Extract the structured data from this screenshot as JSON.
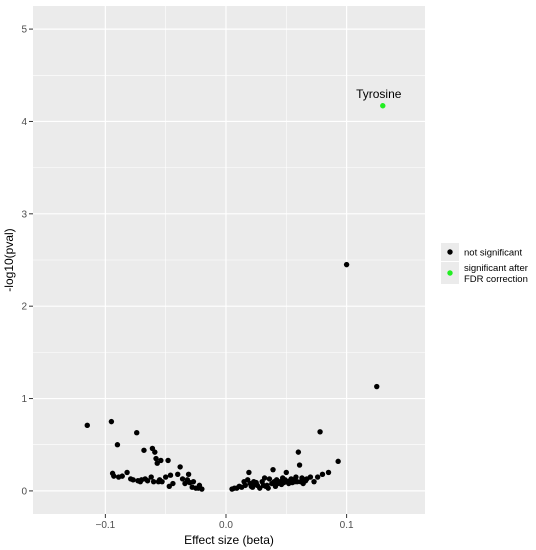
{
  "chart_data": {
    "type": "scatter",
    "title": "",
    "xlabel": "Effect size (beta)",
    "ylabel": "-log10(pval)",
    "xlim": [
      -0.16,
      0.165
    ],
    "ylim": [
      -0.25,
      5.25
    ],
    "x_ticks": [
      -0.1,
      0.0,
      0.1
    ],
    "x_tick_labels": [
      "−0.1",
      "0.0",
      "0.1"
    ],
    "y_ticks": [
      0,
      1,
      2,
      3,
      4,
      5
    ],
    "y_tick_labels": [
      "0",
      "1",
      "2",
      "3",
      "4",
      "5"
    ],
    "grid": true,
    "panel_background": "#ebebeb",
    "legend_position": "right",
    "series": [
      {
        "name": "not significant",
        "color": "#000000",
        "points": [
          [
            -0.115,
            0.71
          ],
          [
            -0.095,
            0.75
          ],
          [
            -0.094,
            0.19
          ],
          [
            -0.093,
            0.16
          ],
          [
            -0.09,
            0.5
          ],
          [
            -0.089,
            0.15
          ],
          [
            -0.086,
            0.16
          ],
          [
            -0.082,
            0.2
          ],
          [
            -0.079,
            0.13
          ],
          [
            -0.077,
            0.12
          ],
          [
            -0.074,
            0.63
          ],
          [
            -0.073,
            0.11
          ],
          [
            -0.071,
            0.1
          ],
          [
            -0.07,
            0.12
          ],
          [
            -0.068,
            0.44
          ],
          [
            -0.067,
            0.13
          ],
          [
            -0.065,
            0.11
          ],
          [
            -0.062,
            0.15
          ],
          [
            -0.061,
            0.46
          ],
          [
            -0.06,
            0.1
          ],
          [
            -0.059,
            0.42
          ],
          [
            -0.058,
            0.35
          ],
          [
            -0.057,
            0.3
          ],
          [
            -0.056,
            0.1
          ],
          [
            -0.055,
            0.12
          ],
          [
            -0.054,
            0.33
          ],
          [
            -0.053,
            0.1
          ],
          [
            -0.05,
            0.15
          ],
          [
            -0.048,
            0.33
          ],
          [
            -0.047,
            0.05
          ],
          [
            -0.046,
            0.17
          ],
          [
            -0.044,
            0.08
          ],
          [
            -0.04,
            0.18
          ],
          [
            -0.038,
            0.26
          ],
          [
            -0.036,
            0.13
          ],
          [
            -0.034,
            0.08
          ],
          [
            -0.032,
            0.12
          ],
          [
            -0.031,
            0.18
          ],
          [
            -0.03,
            0.09
          ],
          [
            -0.028,
            0.04
          ],
          [
            -0.027,
            0.1
          ],
          [
            -0.025,
            0.03
          ],
          [
            -0.023,
            0.03
          ],
          [
            -0.022,
            0.06
          ],
          [
            -0.02,
            0.02
          ],
          [
            0.005,
            0.02
          ],
          [
            0.007,
            0.03
          ],
          [
            0.009,
            0.03
          ],
          [
            0.011,
            0.05
          ],
          [
            0.013,
            0.04
          ],
          [
            0.015,
            0.1
          ],
          [
            0.016,
            0.06
          ],
          [
            0.018,
            0.12
          ],
          [
            0.019,
            0.2
          ],
          [
            0.02,
            0.08
          ],
          [
            0.021,
            0.05
          ],
          [
            0.022,
            0.04
          ],
          [
            0.023,
            0.1
          ],
          [
            0.024,
            0.07
          ],
          [
            0.025,
            0.09
          ],
          [
            0.026,
            0.06
          ],
          [
            0.028,
            0.03
          ],
          [
            0.03,
            0.1
          ],
          [
            0.031,
            0.06
          ],
          [
            0.032,
            0.14
          ],
          [
            0.033,
            0.05
          ],
          [
            0.034,
            0.06
          ],
          [
            0.035,
            0.03
          ],
          [
            0.036,
            0.13
          ],
          [
            0.038,
            0.08
          ],
          [
            0.039,
            0.23
          ],
          [
            0.04,
            0.1
          ],
          [
            0.041,
            0.05
          ],
          [
            0.042,
            0.12
          ],
          [
            0.043,
            0.08
          ],
          [
            0.045,
            0.1
          ],
          [
            0.046,
            0.07
          ],
          [
            0.047,
            0.14
          ],
          [
            0.048,
            0.09
          ],
          [
            0.049,
            0.12
          ],
          [
            0.05,
            0.2
          ],
          [
            0.051,
            0.1
          ],
          [
            0.052,
            0.08
          ],
          [
            0.053,
            0.11
          ],
          [
            0.054,
            0.13
          ],
          [
            0.055,
            0.09
          ],
          [
            0.056,
            0.12
          ],
          [
            0.057,
            0.1
          ],
          [
            0.058,
            0.15
          ],
          [
            0.059,
            0.1
          ],
          [
            0.06,
            0.42
          ],
          [
            0.061,
            0.28
          ],
          [
            0.062,
            0.1
          ],
          [
            0.063,
            0.14
          ],
          [
            0.064,
            0.08
          ],
          [
            0.065,
            0.12
          ],
          [
            0.066,
            0.11
          ],
          [
            0.067,
            0.13
          ],
          [
            0.07,
            0.15
          ],
          [
            0.073,
            0.1
          ],
          [
            0.076,
            0.15
          ],
          [
            0.078,
            0.64
          ],
          [
            0.08,
            0.18
          ],
          [
            0.085,
            0.2
          ],
          [
            0.093,
            0.32
          ],
          [
            0.1,
            2.45
          ],
          [
            0.125,
            1.13
          ]
        ]
      },
      {
        "name": "significant after FDR correction",
        "legend_lines": [
          "significant after",
          "FDR correction"
        ],
        "color": "#22ee22",
        "points": [
          [
            0.13,
            4.17
          ]
        ]
      }
    ],
    "annotations": [
      {
        "text": "Tyrosine",
        "x": 0.13,
        "y": 4.17
      }
    ]
  }
}
